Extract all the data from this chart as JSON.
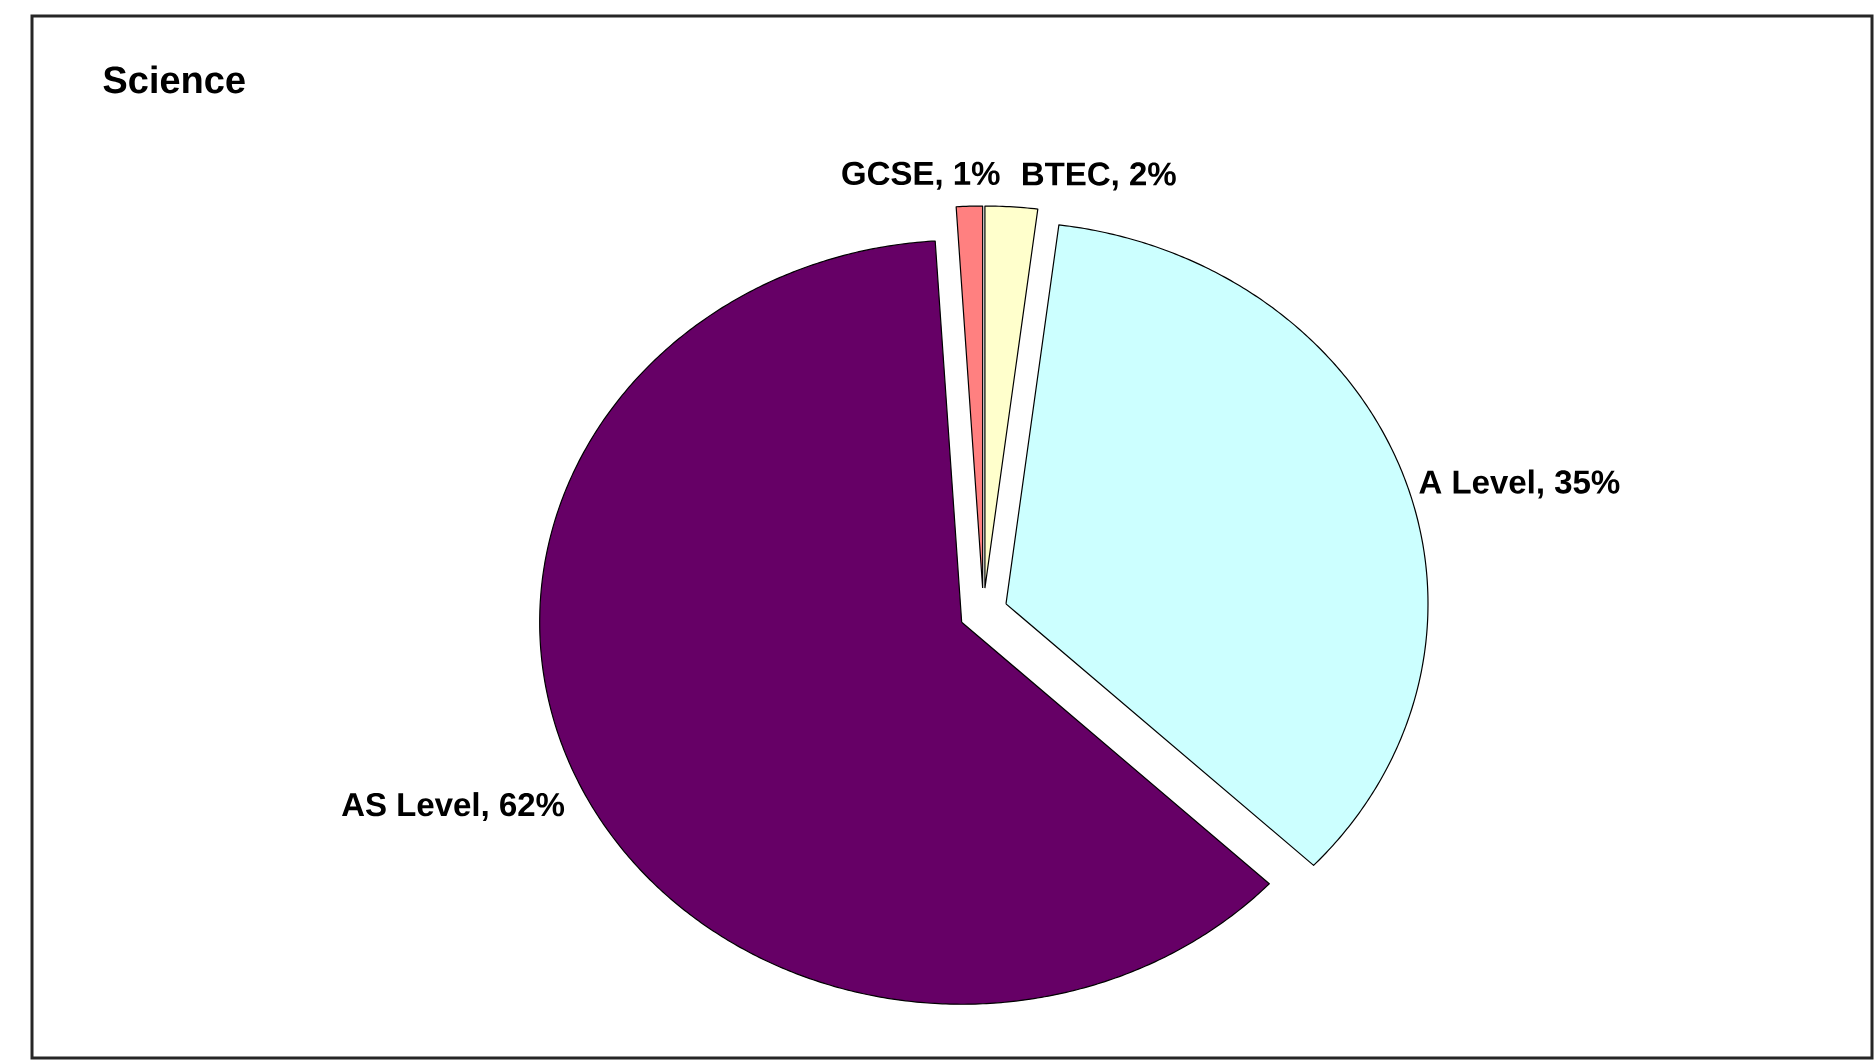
{
  "chart_data": {
    "type": "pie",
    "title": "Science",
    "categories": [
      "BTEC",
      "A Level",
      "AS Level",
      "GCSE"
    ],
    "values": [
      2,
      35,
      62,
      1
    ],
    "value_labels": [
      ", 2%",
      ", 35%",
      ", 62%",
      ", 1%"
    ],
    "colors": [
      "#ffffcc",
      "#ccffff",
      "#660066",
      "#ff8080"
    ]
  }
}
